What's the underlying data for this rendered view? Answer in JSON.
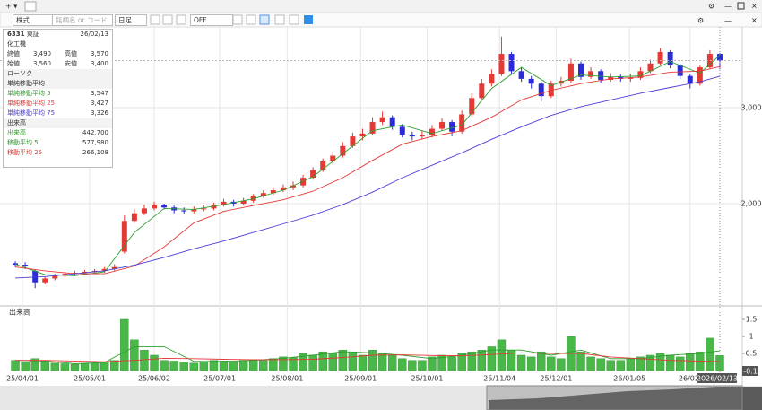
{
  "toolbar": {
    "market": "株式",
    "search_placeholder": "銘柄名 or コード",
    "period": "日足",
    "mode": "OFF"
  },
  "info_panel": {
    "code": "6331",
    "exchange": "東証",
    "date": "26/02/13",
    "name": "化工機",
    "prices": [
      [
        "終値",
        "3,490"
      ],
      [
        "高値",
        "3,570"
      ],
      [
        "始値",
        "3,560"
      ],
      [
        "安値",
        "3,400"
      ]
    ],
    "candle_section": "ローソク",
    "ma_section": "単純移動平均",
    "ma_values": [
      "3,547",
      "3,427",
      "3,326"
    ],
    "volume_section": "出来高",
    "volume_value": "442,700",
    "volume_ma_values": [
      "577,980",
      "266,108"
    ]
  },
  "chart_data": [
    {
      "type": "candlestick",
      "ylim": [
        944,
        3841
      ],
      "xlim": [
        -1.54,
        73.26
      ],
      "grid": true,
      "yticks": [
        {
          "value": 2000,
          "label": "2,000"
        },
        {
          "value": 3000,
          "label": "3,000"
        }
      ],
      "up_color": "#e53935",
      "down_color": "#2b2bd9",
      "ohlc": [
        [
          1380,
          1400,
          1340,
          1364
        ],
        [
          1364,
          1390,
          1320,
          1350
        ],
        [
          1300,
          1310,
          1120,
          1180
        ],
        [
          1180,
          1240,
          1160,
          1220
        ],
        [
          1220,
          1270,
          1200,
          1250
        ],
        [
          1250,
          1290,
          1230,
          1270
        ],
        [
          1270,
          1300,
          1250,
          1280
        ],
        [
          1280,
          1310,
          1260,
          1290
        ],
        [
          1290,
          1320,
          1270,
          1300
        ],
        [
          1300,
          1340,
          1280,
          1320
        ],
        [
          1320,
          1370,
          1300,
          1340
        ],
        [
          1500,
          1880,
          1480,
          1820
        ],
        [
          1820,
          1940,
          1800,
          1900
        ],
        [
          1900,
          1990,
          1880,
          1950
        ],
        [
          1950,
          2020,
          1930,
          1990
        ],
        [
          1990,
          2000,
          1940,
          1960
        ],
        [
          1960,
          1980,
          1900,
          1930
        ],
        [
          1930,
          1960,
          1890,
          1920
        ],
        [
          1920,
          1970,
          1900,
          1940
        ],
        [
          1940,
          1980,
          1920,
          1950
        ],
        [
          1950,
          2010,
          1930,
          1990
        ],
        [
          1990,
          2050,
          1970,
          2020
        ],
        [
          2020,
          2040,
          1970,
          2000
        ],
        [
          2000,
          2060,
          1980,
          2030
        ],
        [
          2030,
          2100,
          2010,
          2080
        ],
        [
          2080,
          2140,
          2060,
          2110
        ],
        [
          2110,
          2170,
          2090,
          2140
        ],
        [
          2140,
          2200,
          2120,
          2170
        ],
        [
          2170,
          2230,
          2140,
          2190
        ],
        [
          2190,
          2300,
          2170,
          2270
        ],
        [
          2270,
          2380,
          2250,
          2350
        ],
        [
          2350,
          2470,
          2330,
          2440
        ],
        [
          2440,
          2540,
          2410,
          2500
        ],
        [
          2500,
          2640,
          2480,
          2600
        ],
        [
          2600,
          2740,
          2580,
          2700
        ],
        [
          2700,
          2780,
          2660,
          2730
        ],
        [
          2730,
          2900,
          2710,
          2850
        ],
        [
          2850,
          2960,
          2820,
          2900
        ],
        [
          2900,
          2920,
          2770,
          2800
        ],
        [
          2800,
          2830,
          2690,
          2720
        ],
        [
          2720,
          2750,
          2660,
          2700
        ],
        [
          2700,
          2760,
          2670,
          2710
        ],
        [
          2710,
          2820,
          2690,
          2780
        ],
        [
          2780,
          2890,
          2760,
          2850
        ],
        [
          2850,
          2870,
          2700,
          2750
        ],
        [
          2750,
          2970,
          2730,
          2930
        ],
        [
          2930,
          3150,
          2910,
          3100
        ],
        [
          3100,
          3300,
          3080,
          3250
        ],
        [
          3250,
          3400,
          3220,
          3350
        ],
        [
          3350,
          3740,
          3330,
          3560
        ],
        [
          3560,
          3580,
          3350,
          3380
        ],
        [
          3380,
          3420,
          3270,
          3300
        ],
        [
          3300,
          3330,
          3200,
          3250
        ],
        [
          3250,
          3270,
          3060,
          3120
        ],
        [
          3120,
          3280,
          3100,
          3250
        ],
        [
          3250,
          3320,
          3220,
          3280
        ],
        [
          3280,
          3510,
          3260,
          3460
        ],
        [
          3460,
          3480,
          3290,
          3320
        ],
        [
          3320,
          3420,
          3300,
          3380
        ],
        [
          3380,
          3400,
          3260,
          3290
        ],
        [
          3290,
          3360,
          3270,
          3320
        ],
        [
          3320,
          3350,
          3270,
          3300
        ],
        [
          3300,
          3350,
          3270,
          3310
        ],
        [
          3310,
          3420,
          3290,
          3380
        ],
        [
          3380,
          3500,
          3360,
          3460
        ],
        [
          3460,
          3620,
          3440,
          3580
        ],
        [
          3580,
          3600,
          3410,
          3440
        ],
        [
          3440,
          3460,
          3300,
          3330
        ],
        [
          3330,
          3350,
          3200,
          3250
        ],
        [
          3250,
          3450,
          3230,
          3420
        ],
        [
          3420,
          3600,
          3400,
          3560
        ],
        [
          3560,
          3570,
          3400,
          3490
        ]
      ],
      "series": [
        {
          "name": "単純移動平均 5",
          "color": "#2e9e2e",
          "x": [
            0,
            3,
            6,
            9,
            12,
            15,
            18,
            21,
            24,
            27,
            30,
            33,
            36,
            39,
            42,
            45,
            48,
            51,
            54,
            57,
            60,
            63,
            66,
            69,
            71
          ],
          "values": [
            1370,
            1260,
            1250,
            1290,
            1700,
            1950,
            1940,
            1990,
            2050,
            2140,
            2280,
            2520,
            2760,
            2820,
            2730,
            2820,
            3200,
            3420,
            3230,
            3340,
            3320,
            3330,
            3480,
            3360,
            3547
          ]
        },
        {
          "name": "単純移動平均 25",
          "color": "#e53935",
          "x": [
            0,
            3,
            6,
            9,
            12,
            15,
            18,
            21,
            24,
            27,
            30,
            33,
            36,
            39,
            42,
            45,
            48,
            51,
            54,
            57,
            60,
            63,
            66,
            69,
            71
          ],
          "values": [
            1340,
            1300,
            1270,
            1270,
            1350,
            1550,
            1800,
            1920,
            1980,
            2040,
            2130,
            2270,
            2450,
            2620,
            2700,
            2760,
            2900,
            3080,
            3180,
            3250,
            3300,
            3320,
            3370,
            3380,
            3427
          ]
        },
        {
          "name": "単純移動平均 75",
          "color": "#4b3fd6",
          "x": [
            0,
            3,
            6,
            9,
            12,
            15,
            18,
            21,
            24,
            27,
            30,
            33,
            36,
            39,
            42,
            45,
            48,
            51,
            54,
            57,
            60,
            63,
            66,
            69,
            71
          ],
          "values": [
            1225,
            1240,
            1270,
            1300,
            1360,
            1440,
            1530,
            1610,
            1700,
            1790,
            1880,
            1990,
            2120,
            2270,
            2400,
            2530,
            2670,
            2800,
            2920,
            3010,
            3080,
            3150,
            3210,
            3270,
            3326
          ]
        }
      ]
    },
    {
      "type": "bar",
      "title": "出来高",
      "ylim": [
        -0.05,
        1.84
      ],
      "xlim": [
        -1.54,
        73.26
      ],
      "yticks": [
        0,
        0.5,
        1,
        1.5
      ],
      "color": "#49b849",
      "xticks": [
        {
          "value": 0.72,
          "label": "25/04/01"
        },
        {
          "value": 7.5,
          "label": "25/05/01"
        },
        {
          "value": 14.0,
          "label": "25/06/02"
        },
        {
          "value": 20.6,
          "label": "25/07/01"
        },
        {
          "value": 27.4,
          "label": "25/08/01"
        },
        {
          "value": 34.8,
          "label": "25/09/01"
        },
        {
          "value": 41.5,
          "label": "25/10/01"
        },
        {
          "value": 48.8,
          "label": "25/11/04"
        },
        {
          "value": 54.5,
          "label": "25/12/01"
        },
        {
          "value": 61.9,
          "label": "26/01/05"
        },
        {
          "value": 68.0,
          "label": "26/02/"
        }
      ],
      "cursor_x_label": "2026/02/13",
      "cursor_y_label": "-0.1",
      "values": [
        0.3,
        0.25,
        0.35,
        0.28,
        0.22,
        0.2,
        0.18,
        0.2,
        0.22,
        0.25,
        0.3,
        1.5,
        0.9,
        0.6,
        0.45,
        0.3,
        0.28,
        0.25,
        0.22,
        0.25,
        0.3,
        0.28,
        0.25,
        0.3,
        0.32,
        0.3,
        0.35,
        0.4,
        0.38,
        0.5,
        0.45,
        0.55,
        0.5,
        0.6,
        0.55,
        0.45,
        0.6,
        0.5,
        0.45,
        0.35,
        0.3,
        0.3,
        0.4,
        0.45,
        0.4,
        0.5,
        0.55,
        0.6,
        0.7,
        0.9,
        0.6,
        0.45,
        0.4,
        0.55,
        0.4,
        0.35,
        1.0,
        0.55,
        0.4,
        0.35,
        0.3,
        0.3,
        0.35,
        0.4,
        0.45,
        0.5,
        0.45,
        0.4,
        0.5,
        0.55,
        0.95,
        0.44
      ],
      "series": [
        {
          "name": "移動平均 5",
          "color": "#2e9e2e",
          "x": [
            0,
            3,
            6,
            9,
            12,
            15,
            18,
            21,
            24,
            27,
            30,
            33,
            36,
            39,
            42,
            45,
            48,
            51,
            54,
            57,
            60,
            63,
            66,
            69,
            71
          ],
          "values": [
            0.3,
            0.28,
            0.2,
            0.24,
            0.7,
            0.7,
            0.27,
            0.27,
            0.3,
            0.36,
            0.45,
            0.55,
            0.52,
            0.45,
            0.35,
            0.45,
            0.6,
            0.6,
            0.45,
            0.6,
            0.35,
            0.35,
            0.45,
            0.5,
            0.578
          ]
        },
        {
          "name": "移動平均 25",
          "color": "#e53935",
          "x": [
            0,
            3,
            6,
            9,
            12,
            15,
            18,
            21,
            24,
            27,
            30,
            33,
            36,
            39,
            42,
            45,
            48,
            51,
            54,
            57,
            60,
            63,
            66,
            69,
            71
          ],
          "values": [
            0.3,
            0.3,
            0.28,
            0.26,
            0.3,
            0.36,
            0.35,
            0.33,
            0.32,
            0.32,
            0.33,
            0.38,
            0.45,
            0.46,
            0.44,
            0.43,
            0.47,
            0.52,
            0.5,
            0.5,
            0.4,
            0.35,
            0.3,
            0.28,
            0.266
          ]
        }
      ]
    }
  ]
}
